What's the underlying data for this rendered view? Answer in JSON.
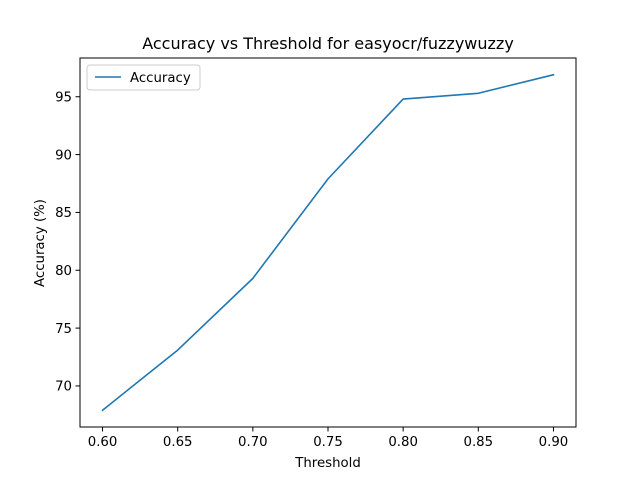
{
  "chart_data": {
    "type": "line",
    "title": "Accuracy vs Threshold for easyocr/fuzzywuzzy",
    "xlabel": "Threshold",
    "ylabel": "Accuracy (%)",
    "x": [
      0.6,
      0.65,
      0.7,
      0.75,
      0.8,
      0.85,
      0.9
    ],
    "series": [
      {
        "name": "Accuracy",
        "color": "#1f77b4",
        "values": [
          67.9,
          73.1,
          79.3,
          87.9,
          94.8,
          95.3,
          96.9
        ]
      }
    ],
    "xlim": [
      0.585,
      0.915
    ],
    "ylim": [
      66.45,
      98.35
    ],
    "xticks": [
      0.6,
      0.65,
      0.7,
      0.75,
      0.8,
      0.85,
      0.9
    ],
    "xtick_labels": [
      "0.60",
      "0.65",
      "0.70",
      "0.75",
      "0.80",
      "0.85",
      "0.90"
    ],
    "yticks": [
      70,
      75,
      80,
      85,
      90,
      95
    ],
    "ytick_labels": [
      "70",
      "75",
      "80",
      "85",
      "90",
      "95"
    ],
    "grid": false,
    "legend_position": "top-left"
  }
}
